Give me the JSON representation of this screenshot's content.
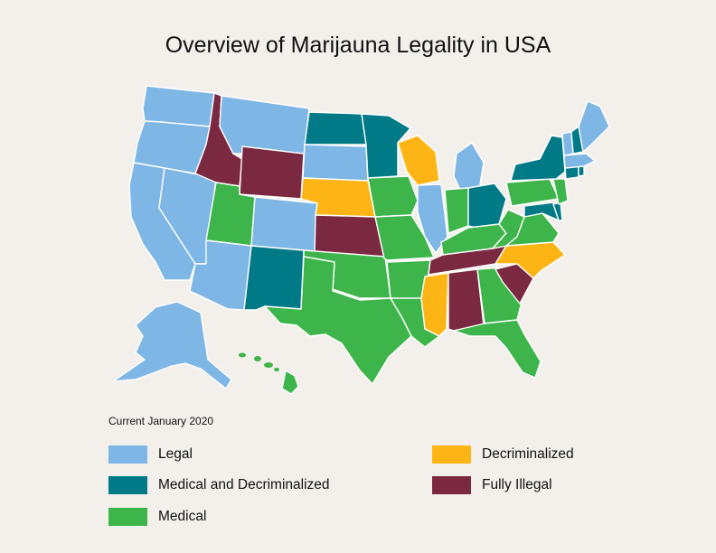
{
  "title": "Overview of Marijauna Legality in USA",
  "caption": "Current January 2020",
  "colors": {
    "legal": "#7eb6e6",
    "med_decrim": "#007a87",
    "medical": "#3db54a",
    "decrim": "#fdb515",
    "illegal": "#7b2941"
  },
  "legend": {
    "legal": "Legal",
    "med_decrim": "Medical and Decriminalized",
    "medical": "Medical",
    "decrim": "Decriminalized",
    "illegal": "Fully Illegal"
  },
  "states": {
    "WA": "legal",
    "OR": "legal",
    "CA": "legal",
    "NV": "legal",
    "ID": "illegal",
    "MT": "legal",
    "WY": "illegal",
    "UT": "medical",
    "AZ": "legal",
    "CO": "legal",
    "NM": "med_decrim",
    "ND": "med_decrim",
    "SD": "legal",
    "NE": "decrim",
    "KS": "illegal",
    "OK": "medical",
    "TX": "medical",
    "MN": "med_decrim",
    "IA": "medical",
    "MO": "medical",
    "AR": "medical",
    "LA": "medical",
    "WI": "decrim",
    "IL": "legal",
    "MI": "legal",
    "IN": "medical",
    "OH": "med_decrim",
    "KY": "medical",
    "TN": "illegal",
    "MS": "decrim",
    "AL": "illegal",
    "GA": "medical",
    "FL": "medical",
    "SC": "illegal",
    "NC": "decrim",
    "VA": "medical",
    "WV": "medical",
    "PA": "medical",
    "NY": "med_decrim",
    "NJ": "medical",
    "DE": "med_decrim",
    "MD": "med_decrim",
    "CT": "med_decrim",
    "RI": "med_decrim",
    "MA": "legal",
    "VT": "legal",
    "NH": "med_decrim",
    "ME": "legal",
    "AK": "legal",
    "HI": "medical"
  }
}
